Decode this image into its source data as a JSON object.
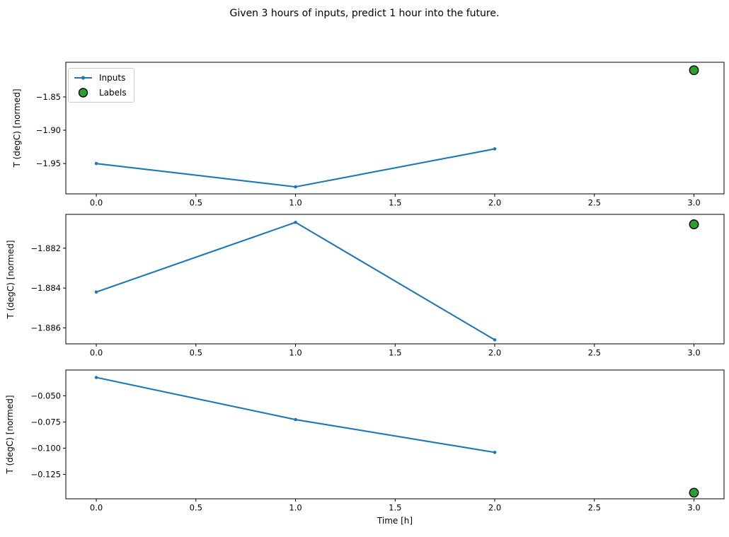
{
  "figure": {
    "title": "Given 3 hours of inputs, predict 1 hour into the future.",
    "colors": {
      "inputs_line": "#1f77b4",
      "labels_fill": "#2ca02c",
      "labels_edge": "#000000",
      "spine": "#000000",
      "tick_text": "#000000"
    }
  },
  "chart_data": {
    "type": "line",
    "figure_title": "Given 3 hours of inputs, predict 1 hour into the future.",
    "xlabel": "Time [h]",
    "ylabel": "T (degC) [normed]",
    "x_inputs": [
      0,
      1,
      2
    ],
    "x_label_point": 3,
    "xlim": [
      -0.153,
      3.151
    ],
    "xticks": [
      0,
      0.5,
      1,
      1.5,
      2,
      2.5,
      3
    ],
    "xtick_labels": [
      "0.0",
      "0.5",
      "1.0",
      "1.5",
      "2.0",
      "2.5",
      "3.0"
    ],
    "legend": {
      "entries": [
        {
          "name": "Inputs",
          "marker": "line-dot"
        },
        {
          "name": "Labels",
          "marker": "circle"
        }
      ],
      "position": "upper left",
      "subplot": 1
    },
    "subplots": [
      {
        "series": [
          {
            "name": "Inputs",
            "values": [
              -1.95,
              -1.985,
              -1.928
            ]
          }
        ],
        "label_point": {
          "name": "Labels",
          "x": 3,
          "y": -1.81
        },
        "ylim": [
          -1.9955,
          -1.798
        ],
        "yticks": [
          -1.85,
          -1.9,
          -1.95
        ],
        "ytick_labels": [
          "−1.85",
          "−1.90",
          "−1.95"
        ],
        "show_xtick_labels": true
      },
      {
        "series": [
          {
            "name": "Inputs",
            "values": [
              -1.8842,
              -1.8807,
              -1.8866
            ]
          }
        ],
        "label_point": {
          "name": "Labels",
          "x": 3,
          "y": -1.8808
        },
        "ylim": [
          -1.8868,
          -1.8803
        ],
        "yticks": [
          -1.882,
          -1.884,
          -1.886
        ],
        "ytick_labels": [
          "−1.882",
          "−1.884",
          "−1.886"
        ],
        "show_xtick_labels": true
      },
      {
        "series": [
          {
            "name": "Inputs",
            "values": [
              -0.0325,
              -0.0727,
              -0.104
            ]
          }
        ],
        "label_point": {
          "name": "Labels",
          "x": 3,
          "y": -0.1425
        },
        "ylim": [
          -0.1483,
          -0.0254
        ],
        "yticks": [
          -0.05,
          -0.075,
          -0.1,
          -0.125
        ],
        "ytick_labels": [
          "−0.050",
          "−0.075",
          "−0.100",
          "−0.125"
        ],
        "show_xtick_labels": true
      }
    ]
  }
}
